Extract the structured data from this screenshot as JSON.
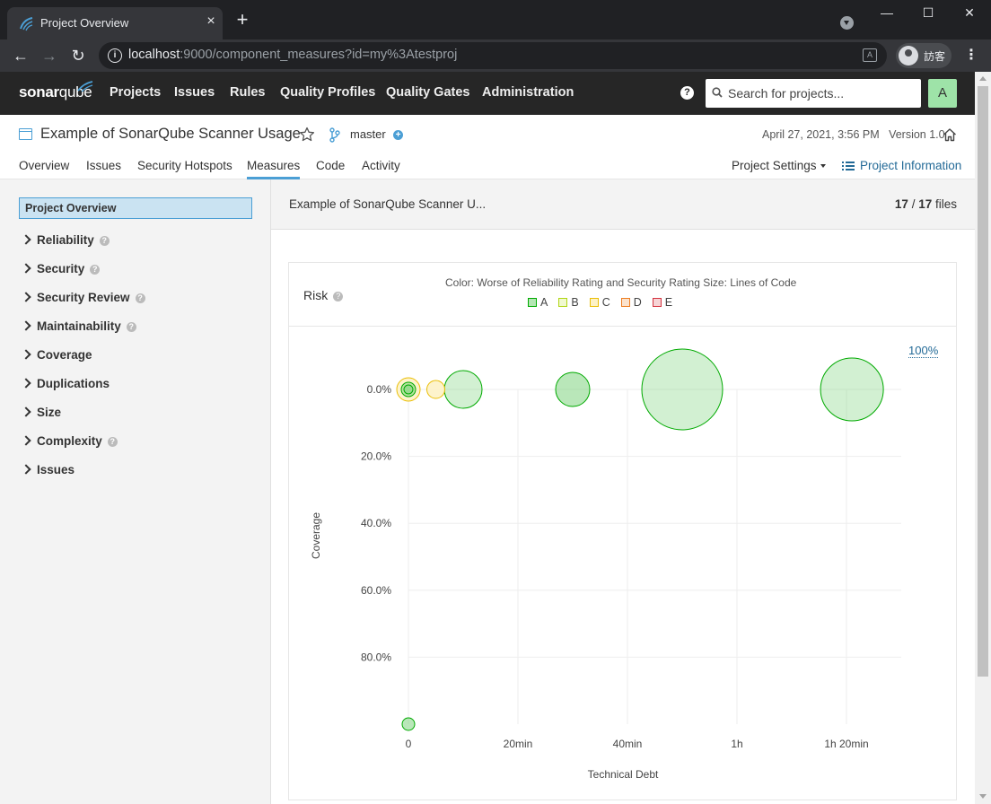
{
  "browser": {
    "tab_title": "Project Overview",
    "close_glyph": "×",
    "new_tab_glyph": "+",
    "url_host": "localhost",
    "url_rest": ":9000/component_measures?id=my%3Atestproj",
    "profile_label": "訪客",
    "min_glyph": "—",
    "max_glyph": "☐",
    "close_win_glyph": "✕",
    "back_glyph": "←",
    "forward_glyph": "→",
    "reload_glyph": "↻",
    "menu_glyph": "⋮",
    "info_glyph": "i",
    "translate_glyph": "A"
  },
  "nav": {
    "logo_bold": "sonar",
    "logo_light": "qube",
    "links": [
      "Projects",
      "Issues",
      "Rules",
      "Quality Profiles",
      "Quality Gates",
      "Administration"
    ],
    "help_glyph": "?",
    "search_placeholder": "Search for projects...",
    "avatar_letter": "A"
  },
  "project": {
    "name": "Example of SonarQube Scanner Usage",
    "branch": "master",
    "branch_plus": "+",
    "date": "April 27, 2021, 3:56 PM",
    "version": "Version 1.0",
    "tabs": [
      "Overview",
      "Issues",
      "Security Hotspots",
      "Measures",
      "Code",
      "Activity"
    ],
    "active_tab": "Measures",
    "settings_label": "Project Settings",
    "info_label": "Project Information"
  },
  "sidebar": {
    "active": "Project Overview",
    "items": [
      {
        "label": "Reliability",
        "help": true
      },
      {
        "label": "Security",
        "help": true
      },
      {
        "label": "Security Review",
        "help": true
      },
      {
        "label": "Maintainability",
        "help": true
      },
      {
        "label": "Coverage",
        "help": false
      },
      {
        "label": "Duplications",
        "help": false
      },
      {
        "label": "Size",
        "help": false
      },
      {
        "label": "Complexity",
        "help": true
      },
      {
        "label": "Issues",
        "help": false
      }
    ],
    "help_glyph": "?"
  },
  "main": {
    "breadcrumb": "Example of SonarQube Scanner U...",
    "files_count": "17",
    "files_sep": " / ",
    "files_total": "17",
    "files_label": " files",
    "risk_title": "Risk",
    "risk_desc": "Color: Worse of Reliability Rating and Security Rating  Size: Lines of Code",
    "reset_zoom": "100%"
  },
  "legend": [
    {
      "label": "A",
      "fill": "#b0d513",
      "stroke": "#00aa00",
      "swatch_fill": "#b4e6b4"
    },
    {
      "label": "B",
      "fill": "#f0f9d0",
      "stroke": "#b0d513",
      "swatch_fill": "#f0f9d0"
    },
    {
      "label": "C",
      "fill": "#fdf2c6",
      "stroke": "#eabe06",
      "swatch_fill": "#fdf2c6"
    },
    {
      "label": "D",
      "fill": "#fbe2cc",
      "stroke": "#ed7d20",
      "swatch_fill": "#fbe2cc"
    },
    {
      "label": "E",
      "fill": "#f6d4d6",
      "stroke": "#d4333f",
      "swatch_fill": "#f6d4d6"
    }
  ],
  "chart_data": {
    "type": "scatter",
    "title": "Risk",
    "subtitle": "Color: Worse of Reliability Rating and Security Rating  Size: Lines of Code",
    "xlabel": "Technical Debt",
    "ylabel": "Coverage",
    "x_unit": "minutes",
    "x_ticks": [
      {
        "value": 0,
        "label": "0"
      },
      {
        "value": 20,
        "label": "20min"
      },
      {
        "value": 40,
        "label": "40min"
      },
      {
        "value": 60,
        "label": "1h"
      },
      {
        "value": 80,
        "label": "1h 20min"
      }
    ],
    "y_ticks": [
      {
        "value": 0,
        "label": "0.0%"
      },
      {
        "value": 20,
        "label": "20.0%"
      },
      {
        "value": 40,
        "label": "40.0%"
      },
      {
        "value": 60,
        "label": "60.0%"
      },
      {
        "value": 80,
        "label": "80.0%"
      }
    ],
    "xlim": [
      0,
      90
    ],
    "ylim": [
      0,
      100
    ],
    "y_inverted": true,
    "grid": true,
    "legend_position": "top",
    "points": [
      {
        "x": 0,
        "y": 0,
        "size": 13,
        "rating": "C"
      },
      {
        "x": 0,
        "y": 0,
        "size": 8,
        "rating": "A"
      },
      {
        "x": 0,
        "y": 0,
        "size": 5,
        "rating": "A"
      },
      {
        "x": 5,
        "y": 0,
        "size": 10,
        "rating": "C"
      },
      {
        "x": 10,
        "y": 0,
        "size": 21,
        "rating": "A"
      },
      {
        "x": 30,
        "y": 0,
        "size": 19,
        "rating": "A"
      },
      {
        "x": 50,
        "y": 0,
        "size": 45,
        "rating": "A"
      },
      {
        "x": 81,
        "y": 0,
        "size": 35,
        "rating": "A"
      },
      {
        "x": 0,
        "y": 100,
        "size": 7,
        "rating": "A"
      }
    ]
  }
}
